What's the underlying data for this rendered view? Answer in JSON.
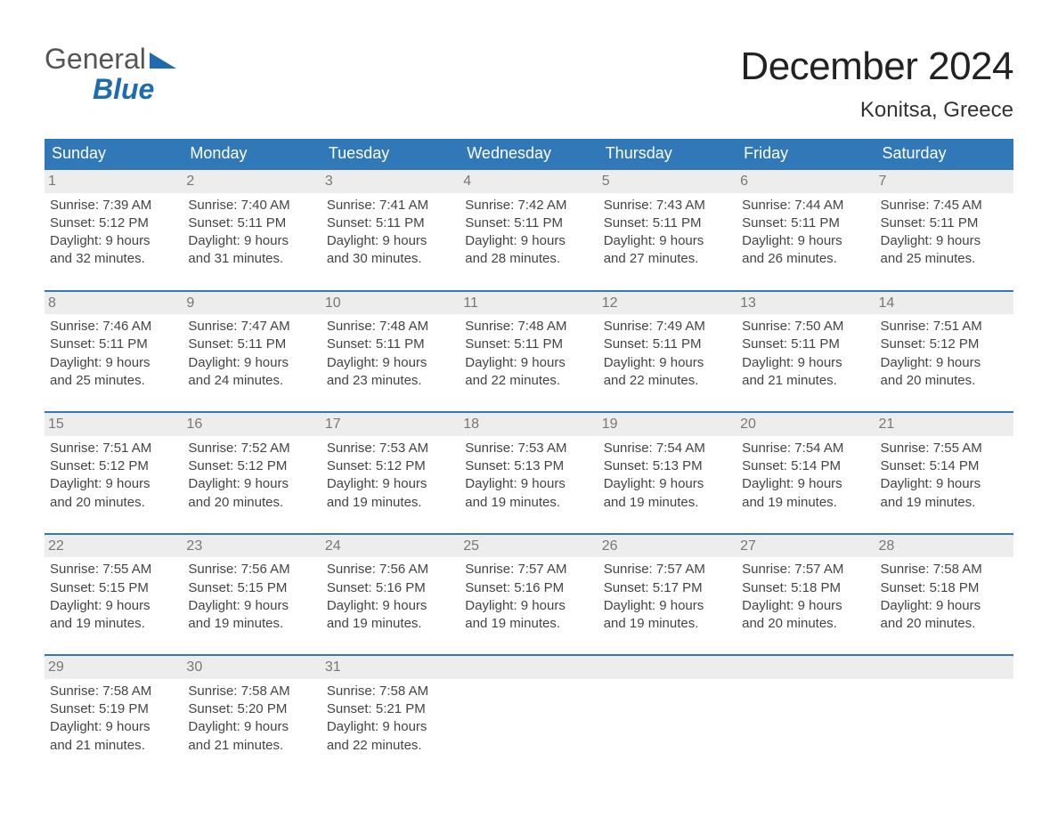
{
  "logo": {
    "text_top": "General",
    "text_bottom": "Blue",
    "flag_color": "#1f6bb0",
    "top_color": "#555555"
  },
  "title": "December 2024",
  "subtitle": "Konitsa, Greece",
  "colors": {
    "header_bg": "#3178b8",
    "header_text": "#ffffff",
    "daynum_bg": "#ededed",
    "daynum_text": "#777777",
    "body_text": "#444444",
    "week_border": "#3178b8",
    "page_bg": "#ffffff"
  },
  "fonts": {
    "title_size": 44,
    "subtitle_size": 24,
    "header_size": 18,
    "cell_size": 15
  },
  "day_headers": [
    "Sunday",
    "Monday",
    "Tuesday",
    "Wednesday",
    "Thursday",
    "Friday",
    "Saturday"
  ],
  "weeks": [
    [
      {
        "num": "1",
        "sunrise": "7:39 AM",
        "sunset": "5:12 PM",
        "daylight_h": "9",
        "daylight_m": "32"
      },
      {
        "num": "2",
        "sunrise": "7:40 AM",
        "sunset": "5:11 PM",
        "daylight_h": "9",
        "daylight_m": "31"
      },
      {
        "num": "3",
        "sunrise": "7:41 AM",
        "sunset": "5:11 PM",
        "daylight_h": "9",
        "daylight_m": "30"
      },
      {
        "num": "4",
        "sunrise": "7:42 AM",
        "sunset": "5:11 PM",
        "daylight_h": "9",
        "daylight_m": "28"
      },
      {
        "num": "5",
        "sunrise": "7:43 AM",
        "sunset": "5:11 PM",
        "daylight_h": "9",
        "daylight_m": "27"
      },
      {
        "num": "6",
        "sunrise": "7:44 AM",
        "sunset": "5:11 PM",
        "daylight_h": "9",
        "daylight_m": "26"
      },
      {
        "num": "7",
        "sunrise": "7:45 AM",
        "sunset": "5:11 PM",
        "daylight_h": "9",
        "daylight_m": "25"
      }
    ],
    [
      {
        "num": "8",
        "sunrise": "7:46 AM",
        "sunset": "5:11 PM",
        "daylight_h": "9",
        "daylight_m": "25"
      },
      {
        "num": "9",
        "sunrise": "7:47 AM",
        "sunset": "5:11 PM",
        "daylight_h": "9",
        "daylight_m": "24"
      },
      {
        "num": "10",
        "sunrise": "7:48 AM",
        "sunset": "5:11 PM",
        "daylight_h": "9",
        "daylight_m": "23"
      },
      {
        "num": "11",
        "sunrise": "7:48 AM",
        "sunset": "5:11 PM",
        "daylight_h": "9",
        "daylight_m": "22"
      },
      {
        "num": "12",
        "sunrise": "7:49 AM",
        "sunset": "5:11 PM",
        "daylight_h": "9",
        "daylight_m": "22"
      },
      {
        "num": "13",
        "sunrise": "7:50 AM",
        "sunset": "5:11 PM",
        "daylight_h": "9",
        "daylight_m": "21"
      },
      {
        "num": "14",
        "sunrise": "7:51 AM",
        "sunset": "5:12 PM",
        "daylight_h": "9",
        "daylight_m": "20"
      }
    ],
    [
      {
        "num": "15",
        "sunrise": "7:51 AM",
        "sunset": "5:12 PM",
        "daylight_h": "9",
        "daylight_m": "20"
      },
      {
        "num": "16",
        "sunrise": "7:52 AM",
        "sunset": "5:12 PM",
        "daylight_h": "9",
        "daylight_m": "20"
      },
      {
        "num": "17",
        "sunrise": "7:53 AM",
        "sunset": "5:12 PM",
        "daylight_h": "9",
        "daylight_m": "19"
      },
      {
        "num": "18",
        "sunrise": "7:53 AM",
        "sunset": "5:13 PM",
        "daylight_h": "9",
        "daylight_m": "19"
      },
      {
        "num": "19",
        "sunrise": "7:54 AM",
        "sunset": "5:13 PM",
        "daylight_h": "9",
        "daylight_m": "19"
      },
      {
        "num": "20",
        "sunrise": "7:54 AM",
        "sunset": "5:14 PM",
        "daylight_h": "9",
        "daylight_m": "19"
      },
      {
        "num": "21",
        "sunrise": "7:55 AM",
        "sunset": "5:14 PM",
        "daylight_h": "9",
        "daylight_m": "19"
      }
    ],
    [
      {
        "num": "22",
        "sunrise": "7:55 AM",
        "sunset": "5:15 PM",
        "daylight_h": "9",
        "daylight_m": "19"
      },
      {
        "num": "23",
        "sunrise": "7:56 AM",
        "sunset": "5:15 PM",
        "daylight_h": "9",
        "daylight_m": "19"
      },
      {
        "num": "24",
        "sunrise": "7:56 AM",
        "sunset": "5:16 PM",
        "daylight_h": "9",
        "daylight_m": "19"
      },
      {
        "num": "25",
        "sunrise": "7:57 AM",
        "sunset": "5:16 PM",
        "daylight_h": "9",
        "daylight_m": "19"
      },
      {
        "num": "26",
        "sunrise": "7:57 AM",
        "sunset": "5:17 PM",
        "daylight_h": "9",
        "daylight_m": "19"
      },
      {
        "num": "27",
        "sunrise": "7:57 AM",
        "sunset": "5:18 PM",
        "daylight_h": "9",
        "daylight_m": "20"
      },
      {
        "num": "28",
        "sunrise": "7:58 AM",
        "sunset": "5:18 PM",
        "daylight_h": "9",
        "daylight_m": "20"
      }
    ],
    [
      {
        "num": "29",
        "sunrise": "7:58 AM",
        "sunset": "5:19 PM",
        "daylight_h": "9",
        "daylight_m": "21"
      },
      {
        "num": "30",
        "sunrise": "7:58 AM",
        "sunset": "5:20 PM",
        "daylight_h": "9",
        "daylight_m": "21"
      },
      {
        "num": "31",
        "sunrise": "7:58 AM",
        "sunset": "5:21 PM",
        "daylight_h": "9",
        "daylight_m": "22"
      },
      null,
      null,
      null,
      null
    ]
  ],
  "labels": {
    "sunrise_prefix": "Sunrise: ",
    "sunset_prefix": "Sunset: ",
    "daylight_line1_prefix": "Daylight: ",
    "daylight_line1_suffix": " hours",
    "daylight_line2_prefix": "and ",
    "daylight_line2_suffix": " minutes."
  }
}
